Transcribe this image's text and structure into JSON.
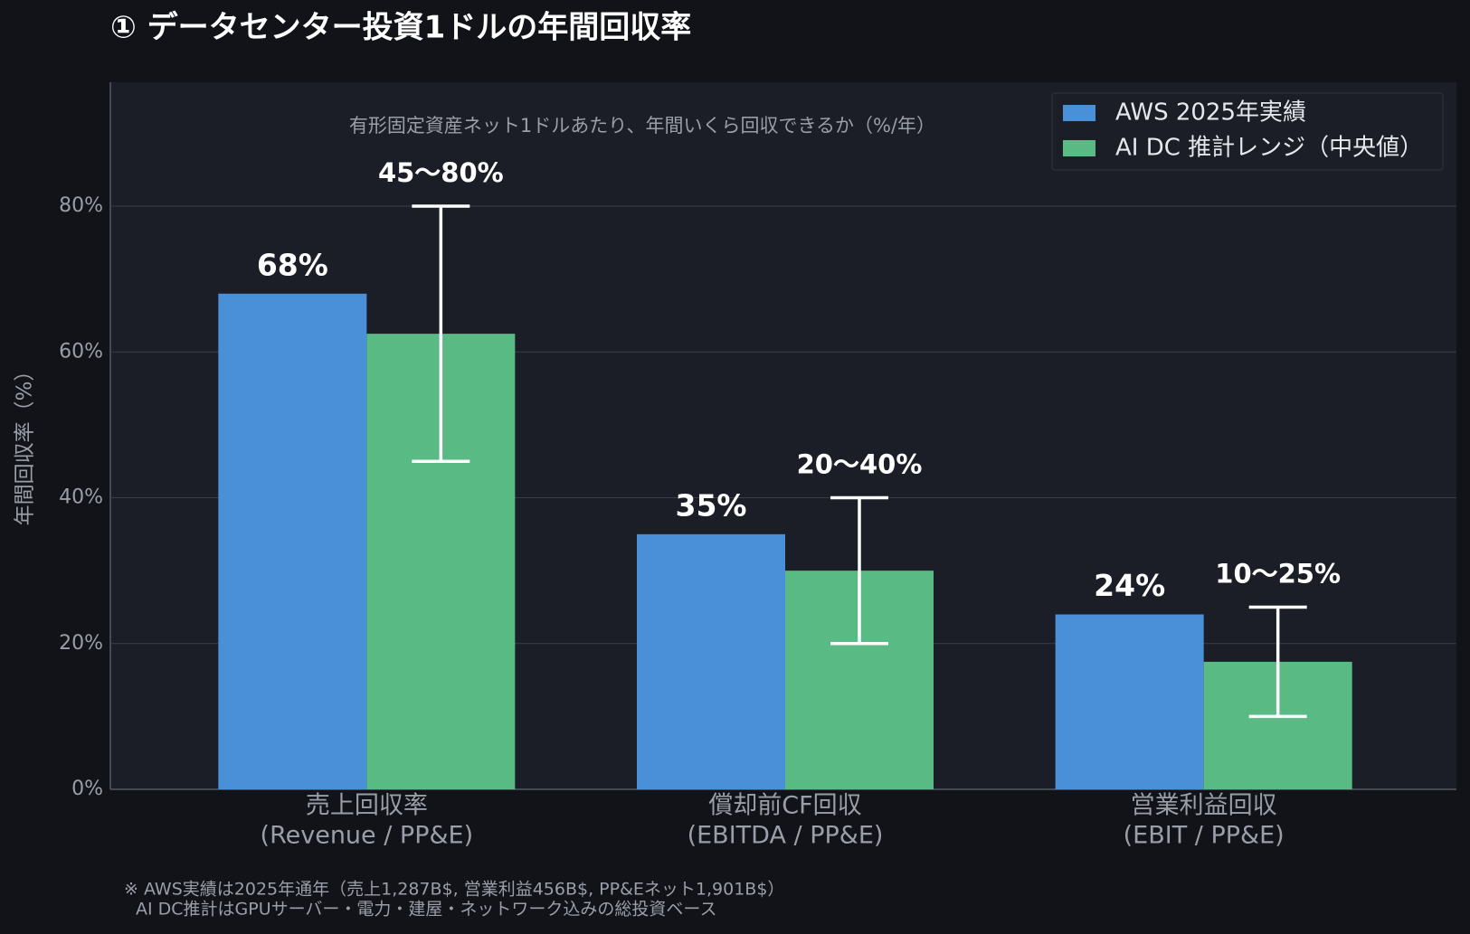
{
  "chart_data": {
    "type": "bar",
    "title": "① データセンター投資1ドルの年間回収率",
    "subtitle": "有形固定資産ネット1ドルあたり、年間いくら回収できるか（%/年）",
    "y_label": "年間回収率（%）",
    "categories": [
      [
        "売上回収率",
        "(Revenue / PP&E)"
      ],
      [
        "償却前CF回収",
        "(EBITDA / PP&E)"
      ],
      [
        "営業利益回収",
        "(EBIT / PP&E)"
      ]
    ],
    "series": [
      {
        "name": "AWS 2025年実績",
        "color": "#4a90d9",
        "values": [
          68,
          35,
          24
        ],
        "value_labels": [
          "68%",
          "35%",
          "24%"
        ]
      },
      {
        "name": "AI DC 推計レンジ（中央値）",
        "color": "#5aba84",
        "values": [
          62.5,
          30,
          17.5
        ],
        "range_low": [
          45,
          20,
          10
        ],
        "range_high": [
          80,
          40,
          25
        ],
        "range_labels": [
          "45〜80%",
          "20〜40%",
          "10〜25%"
        ]
      }
    ],
    "ylim": [
      0,
      97
    ],
    "yticks": [
      {
        "value": 0,
        "label": "0%"
      },
      {
        "value": 20,
        "label": "20%"
      },
      {
        "value": 40,
        "label": "40%"
      },
      {
        "value": 60,
        "label": "60%"
      },
      {
        "value": 80,
        "label": "80%"
      }
    ],
    "grid": true,
    "legend": "upper right",
    "footnote": [
      "※ AWS実績は2025年通年（売上1,287B$, 営業利益456B$, PP&Eネット1,901B$）",
      "AI DC推計はGPUサーバー・電力・建屋・ネットワーク込みの総投資ベース"
    ]
  }
}
